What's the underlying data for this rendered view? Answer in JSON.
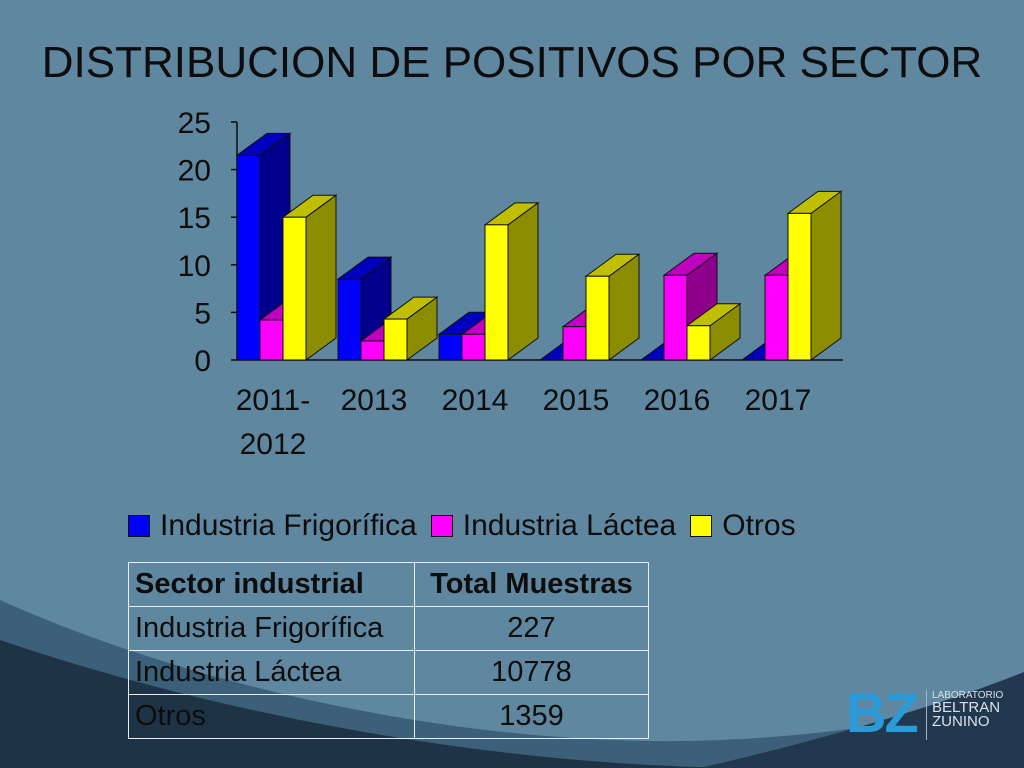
{
  "title": "DISTRIBUCION DE POSITIVOS POR SECTOR",
  "chart_data": {
    "type": "bar",
    "three_d": true,
    "categories": [
      [
        "2011-",
        "2012"
      ],
      [
        "2013"
      ],
      [
        "2014"
      ],
      [
        "2015"
      ],
      [
        "2016"
      ],
      [
        "2017"
      ]
    ],
    "series": [
      {
        "name": "Industria Frigorífica",
        "color": "#0000ff",
        "values": [
          21.5,
          8.5,
          2.7,
          0,
          0,
          0
        ]
      },
      {
        "name": "Industria Láctea",
        "color": "#ff00ff",
        "values": [
          4.2,
          2,
          2.7,
          3.5,
          8.9,
          8.9
        ]
      },
      {
        "name": "Otros",
        "color": "#ffff00",
        "values": [
          15,
          4.3,
          14.2,
          8.8,
          3.6,
          15.4
        ]
      }
    ],
    "ylim": [
      0,
      25
    ],
    "yticks": [
      "0",
      "5",
      "10",
      "15",
      "20",
      "25"
    ],
    "legend_position": "bottom",
    "grid": false
  },
  "table": {
    "headers": [
      "Sector industrial",
      "Total Muestras"
    ],
    "rows": [
      [
        "Industria Frigorífica",
        "227"
      ],
      [
        "Industria Láctea",
        "10778"
      ],
      [
        "Otros",
        "1359"
      ]
    ]
  },
  "logo": {
    "mark": "BZ",
    "line1": "LABORATORIO",
    "line2": "BELTRAN",
    "line3": "ZUNINO"
  },
  "colors": {
    "background": "#5f87a0",
    "wave": "#1f3347"
  }
}
